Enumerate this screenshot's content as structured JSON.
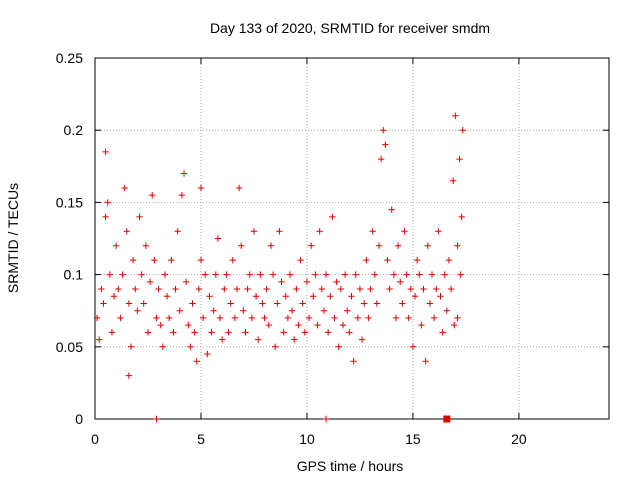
{
  "chart_data": {
    "type": "scatter",
    "title": "Day 133 of 2020, SRMTID for receiver smdm",
    "xlabel": "GPS time / hours",
    "ylabel": "SRMTID / TECUs",
    "xlim": [
      0,
      24.25
    ],
    "ylim": [
      0,
      0.25
    ],
    "xticks": [
      0,
      5,
      10,
      15,
      20
    ],
    "yticks": [
      0,
      0.05,
      0.1,
      0.15,
      0.2,
      0.25
    ],
    "xtick_labels": [
      "0",
      "5",
      "10",
      "15",
      "20"
    ],
    "ytick_labels": [
      "0",
      "0.05",
      "0.1",
      "0.15",
      "0.2",
      "0.25"
    ],
    "grid": true,
    "marker": "plus",
    "series": [
      {
        "name": "SRMTID",
        "color": "#e00000",
        "points": [
          [
            0.1,
            0.07
          ],
          [
            0.2,
            0.055
          ],
          [
            0.3,
            0.09
          ],
          [
            0.4,
            0.08
          ],
          [
            0.5,
            0.14
          ],
          [
            0.5,
            0.185
          ],
          [
            0.6,
            0.15
          ],
          [
            0.7,
            0.1
          ],
          [
            0.8,
            0.06
          ],
          [
            0.9,
            0.085
          ],
          [
            1.0,
            0.12
          ],
          [
            1.1,
            0.09
          ],
          [
            1.2,
            0.07
          ],
          [
            1.3,
            0.1
          ],
          [
            1.4,
            0.16
          ],
          [
            1.5,
            0.13
          ],
          [
            1.6,
            0.08
          ],
          [
            1.7,
            0.05
          ],
          [
            1.6,
            0.03
          ],
          [
            1.8,
            0.11
          ],
          [
            1.9,
            0.09
          ],
          [
            2.0,
            0.075
          ],
          [
            2.1,
            0.14
          ],
          [
            2.2,
            0.1
          ],
          [
            2.3,
            0.08
          ],
          [
            2.4,
            0.12
          ],
          [
            2.5,
            0.06
          ],
          [
            2.6,
            0.095
          ],
          [
            2.7,
            0.155
          ],
          [
            2.8,
            0.11
          ],
          [
            2.9,
            0.07
          ],
          [
            3.0,
            0.09
          ],
          [
            3.1,
            0.065
          ],
          [
            3.2,
            0.05
          ],
          [
            3.3,
            0.1
          ],
          [
            3.4,
            0.085
          ],
          [
            3.5,
            0.07
          ],
          [
            3.6,
            0.11
          ],
          [
            3.7,
            0.06
          ],
          [
            3.8,
            0.09
          ],
          [
            3.9,
            0.13
          ],
          [
            4.0,
            0.075
          ],
          [
            4.1,
            0.155
          ],
          [
            4.2,
            0.17
          ],
          [
            4.3,
            0.095
          ],
          [
            4.4,
            0.065
          ],
          [
            4.5,
            0.05
          ],
          [
            4.6,
            0.08
          ],
          [
            4.7,
            0.06
          ],
          [
            4.8,
            0.04
          ],
          [
            4.9,
            0.09
          ],
          [
            5.0,
            0.16
          ],
          [
            5.0,
            0.11
          ],
          [
            5.1,
            0.07
          ],
          [
            5.2,
            0.1
          ],
          [
            5.3,
            0.045
          ],
          [
            5.4,
            0.085
          ],
          [
            5.5,
            0.06
          ],
          [
            5.6,
            0.075
          ],
          [
            5.7,
            0.1
          ],
          [
            5.8,
            0.125
          ],
          [
            5.9,
            0.07
          ],
          [
            6.0,
            0.055
          ],
          [
            6.1,
            0.09
          ],
          [
            6.2,
            0.1
          ],
          [
            6.3,
            0.06
          ],
          [
            6.4,
            0.08
          ],
          [
            6.5,
            0.11
          ],
          [
            6.6,
            0.07
          ],
          [
            6.7,
            0.09
          ],
          [
            6.8,
            0.16
          ],
          [
            6.9,
            0.12
          ],
          [
            7.0,
            0.075
          ],
          [
            7.1,
            0.06
          ],
          [
            7.2,
            0.09
          ],
          [
            7.3,
            0.1
          ],
          [
            7.4,
            0.07
          ],
          [
            7.5,
            0.13
          ],
          [
            7.6,
            0.085
          ],
          [
            7.7,
            0.055
          ],
          [
            7.8,
            0.1
          ],
          [
            7.9,
            0.08
          ],
          [
            8.0,
            0.07
          ],
          [
            8.1,
            0.09
          ],
          [
            8.2,
            0.065
          ],
          [
            8.3,
            0.12
          ],
          [
            8.4,
            0.1
          ],
          [
            8.5,
            0.05
          ],
          [
            8.6,
            0.08
          ],
          [
            8.7,
            0.13
          ],
          [
            8.8,
            0.095
          ],
          [
            8.9,
            0.06
          ],
          [
            9.0,
            0.085
          ],
          [
            9.1,
            0.07
          ],
          [
            9.2,
            0.1
          ],
          [
            9.3,
            0.075
          ],
          [
            9.4,
            0.055
          ],
          [
            9.5,
            0.09
          ],
          [
            9.6,
            0.065
          ],
          [
            9.7,
            0.11
          ],
          [
            9.8,
            0.08
          ],
          [
            9.9,
            0.06
          ],
          [
            10.0,
            0.095
          ],
          [
            10.1,
            0.07
          ],
          [
            10.2,
            0.12
          ],
          [
            10.3,
            0.085
          ],
          [
            10.4,
            0.1
          ],
          [
            10.5,
            0.065
          ],
          [
            10.6,
            0.13
          ],
          [
            10.7,
            0.09
          ],
          [
            10.8,
            0.075
          ],
          [
            10.9,
            0.1
          ],
          [
            11.0,
            0.06
          ],
          [
            11.1,
            0.085
          ],
          [
            11.2,
            0.14
          ],
          [
            11.3,
            0.07
          ],
          [
            11.4,
            0.095
          ],
          [
            11.5,
            0.05
          ],
          [
            11.6,
            0.09
          ],
          [
            11.7,
            0.065
          ],
          [
            11.8,
            0.1
          ],
          [
            11.9,
            0.075
          ],
          [
            12.0,
            0.06
          ],
          [
            12.1,
            0.085
          ],
          [
            12.2,
            0.04
          ],
          [
            12.3,
            0.1
          ],
          [
            12.4,
            0.07
          ],
          [
            12.5,
            0.09
          ],
          [
            12.6,
            0.055
          ],
          [
            12.7,
            0.08
          ],
          [
            12.8,
            0.11
          ],
          [
            12.9,
            0.07
          ],
          [
            13.0,
            0.09
          ],
          [
            13.1,
            0.13
          ],
          [
            13.2,
            0.1
          ],
          [
            13.3,
            0.08
          ],
          [
            13.4,
            0.12
          ],
          [
            13.5,
            0.18
          ],
          [
            13.6,
            0.2
          ],
          [
            13.7,
            0.19
          ],
          [
            13.8,
            0.11
          ],
          [
            13.9,
            0.09
          ],
          [
            14.0,
            0.145
          ],
          [
            14.1,
            0.1
          ],
          [
            14.2,
            0.07
          ],
          [
            14.3,
            0.12
          ],
          [
            14.4,
            0.095
          ],
          [
            14.5,
            0.08
          ],
          [
            14.6,
            0.13
          ],
          [
            14.7,
            0.1
          ],
          [
            14.8,
            0.07
          ],
          [
            14.9,
            0.09
          ],
          [
            15.0,
            0.05
          ],
          [
            15.1,
            0.085
          ],
          [
            15.2,
            0.11
          ],
          [
            15.3,
            0.1
          ],
          [
            15.4,
            0.065
          ],
          [
            15.5,
            0.09
          ],
          [
            15.6,
            0.04
          ],
          [
            15.7,
            0.12
          ],
          [
            15.8,
            0.08
          ],
          [
            15.9,
            0.1
          ],
          [
            16.0,
            0.07
          ],
          [
            16.1,
            0.09
          ],
          [
            16.2,
            0.13
          ],
          [
            16.3,
            0.085
          ],
          [
            16.4,
            0.06
          ],
          [
            16.5,
            0.1
          ],
          [
            16.6,
            0.075
          ],
          [
            16.7,
            0.11
          ],
          [
            16.8,
            0.09
          ],
          [
            16.9,
            0.165
          ],
          [
            17.0,
            0.21
          ],
          [
            17.1,
            0.12
          ],
          [
            17.2,
            0.18
          ],
          [
            17.3,
            0.14
          ],
          [
            17.35,
            0.2
          ],
          [
            17.1,
            0.07
          ],
          [
            16.95,
            0.065
          ],
          [
            17.25,
            0.1
          ]
        ]
      }
    ],
    "zero_markers": [
      2.9,
      10.9
    ],
    "square_marker": [
      16.6,
      0
    ]
  }
}
